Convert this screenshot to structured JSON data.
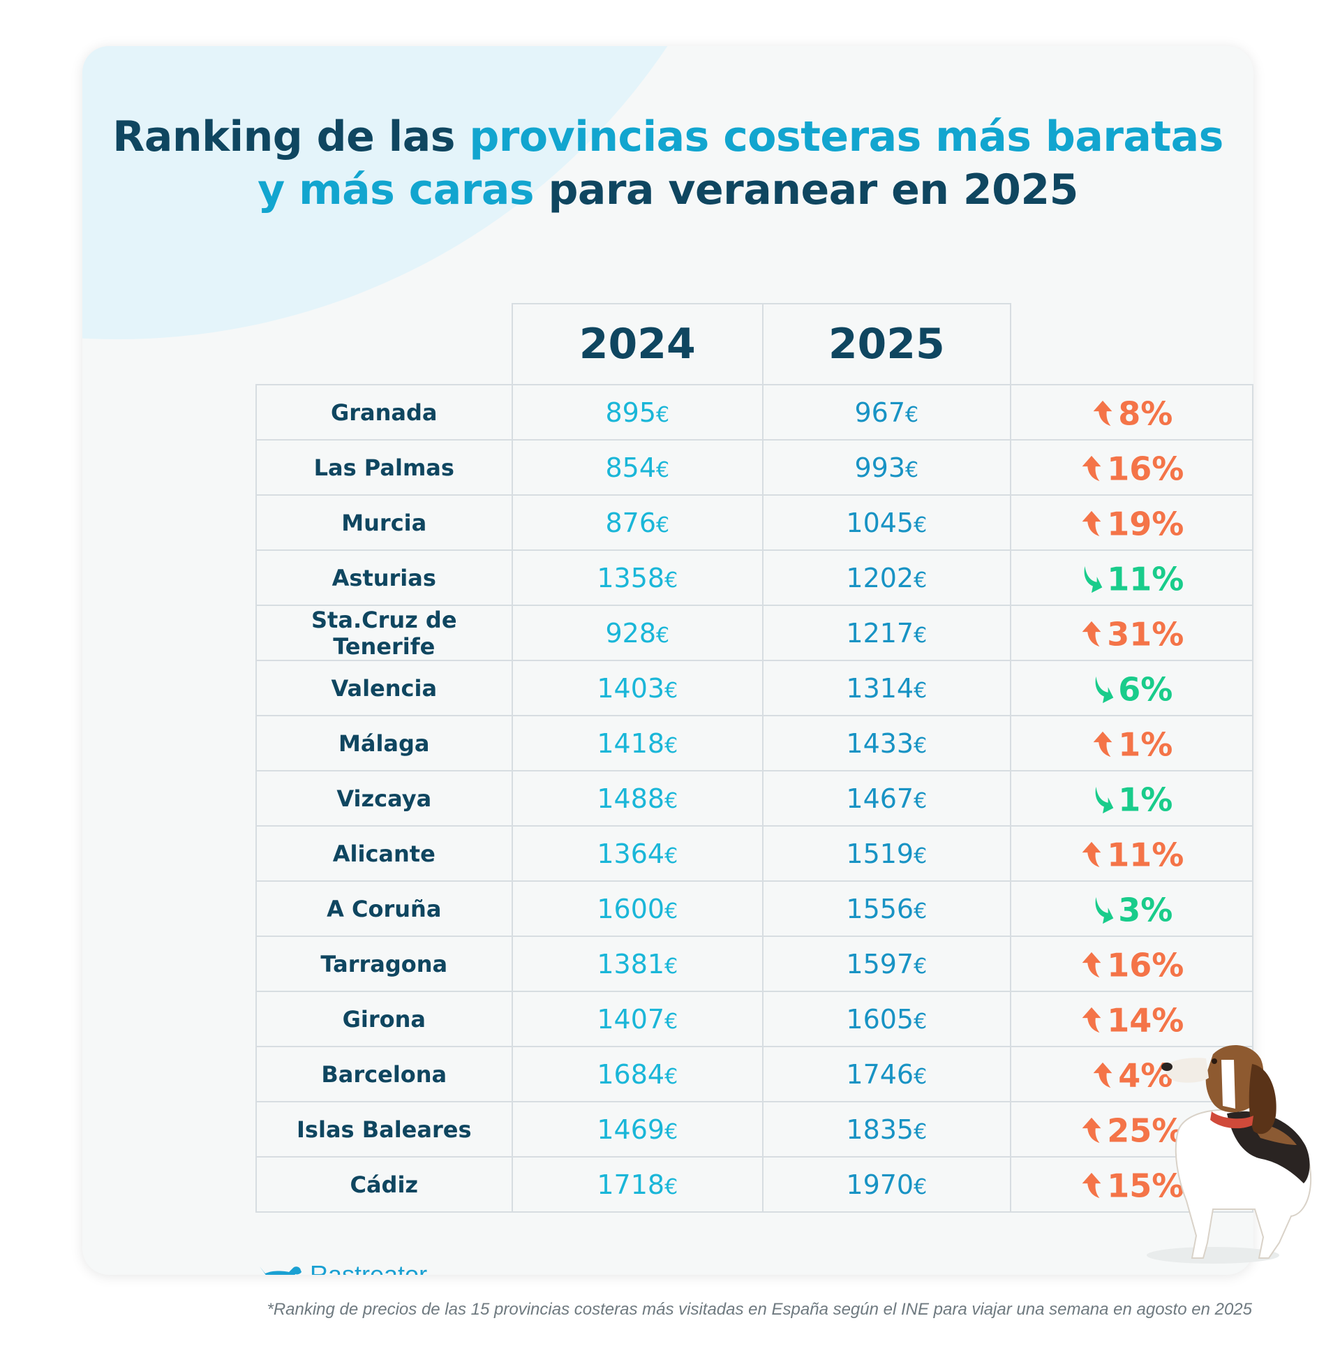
{
  "title": {
    "part1": "Ranking de las ",
    "part2": "provincias costeras más baratas",
    "part3": "y más caras",
    "part4": " para veranear en 2025"
  },
  "table": {
    "headers": [
      "2024",
      "2025"
    ],
    "currency": "€",
    "rows": [
      {
        "province": "Granada",
        "p2024": "895",
        "p2025": "967",
        "change": "8%",
        "direction": "up"
      },
      {
        "province": "Las Palmas",
        "p2024": "854",
        "p2025": "993",
        "change": "16%",
        "direction": "up"
      },
      {
        "province": "Murcia",
        "p2024": "876",
        "p2025": "1045",
        "change": "19%",
        "direction": "up"
      },
      {
        "province": "Asturias",
        "p2024": "1358",
        "p2025": "1202",
        "change": "11%",
        "direction": "down"
      },
      {
        "province": "Sta.Cruz de Tenerife",
        "p2024": "928",
        "p2025": "1217",
        "change": "31%",
        "direction": "up"
      },
      {
        "province": "Valencia",
        "p2024": "1403",
        "p2025": "1314",
        "change": "6%",
        "direction": "down"
      },
      {
        "province": "Málaga",
        "p2024": "1418",
        "p2025": "1433",
        "change": "1%",
        "direction": "up"
      },
      {
        "province": "Vizcaya",
        "p2024": "1488",
        "p2025": "1467",
        "change": "1%",
        "direction": "down"
      },
      {
        "province": "Alicante",
        "p2024": "1364",
        "p2025": "1519",
        "change": "11%",
        "direction": "up"
      },
      {
        "province": "A Coruña",
        "p2024": "1600",
        "p2025": "1556",
        "change": "3%",
        "direction": "down"
      },
      {
        "province": "Tarragona",
        "p2024": "1381",
        "p2025": "1597",
        "change": "16%",
        "direction": "up"
      },
      {
        "province": "Girona",
        "p2024": "1407",
        "p2025": "1605",
        "change": "14%",
        "direction": "up"
      },
      {
        "province": "Barcelona",
        "p2024": "1684",
        "p2025": "1746",
        "change": "4%",
        "direction": "up"
      },
      {
        "province": "Islas Baleares",
        "p2024": "1469",
        "p2025": "1835",
        "change": "25%",
        "direction": "up"
      },
      {
        "province": "Cádiz",
        "p2024": "1718",
        "p2025": "1970",
        "change": "15%",
        "direction": "up"
      }
    ]
  },
  "colors": {
    "up": "#f47448",
    "down": "#19cc8b",
    "navy": "#0f4660",
    "accent": "#12a5cf"
  },
  "icons": {
    "up": "arrow-up-icon",
    "down": "arrow-down-icon",
    "logo": "dog-logo-icon"
  },
  "brand": "Rastreator",
  "footnote": "*Ranking de precios de las 15 provincias costeras más visitadas en España según el INE para viajar una semana en agosto en 2025"
}
